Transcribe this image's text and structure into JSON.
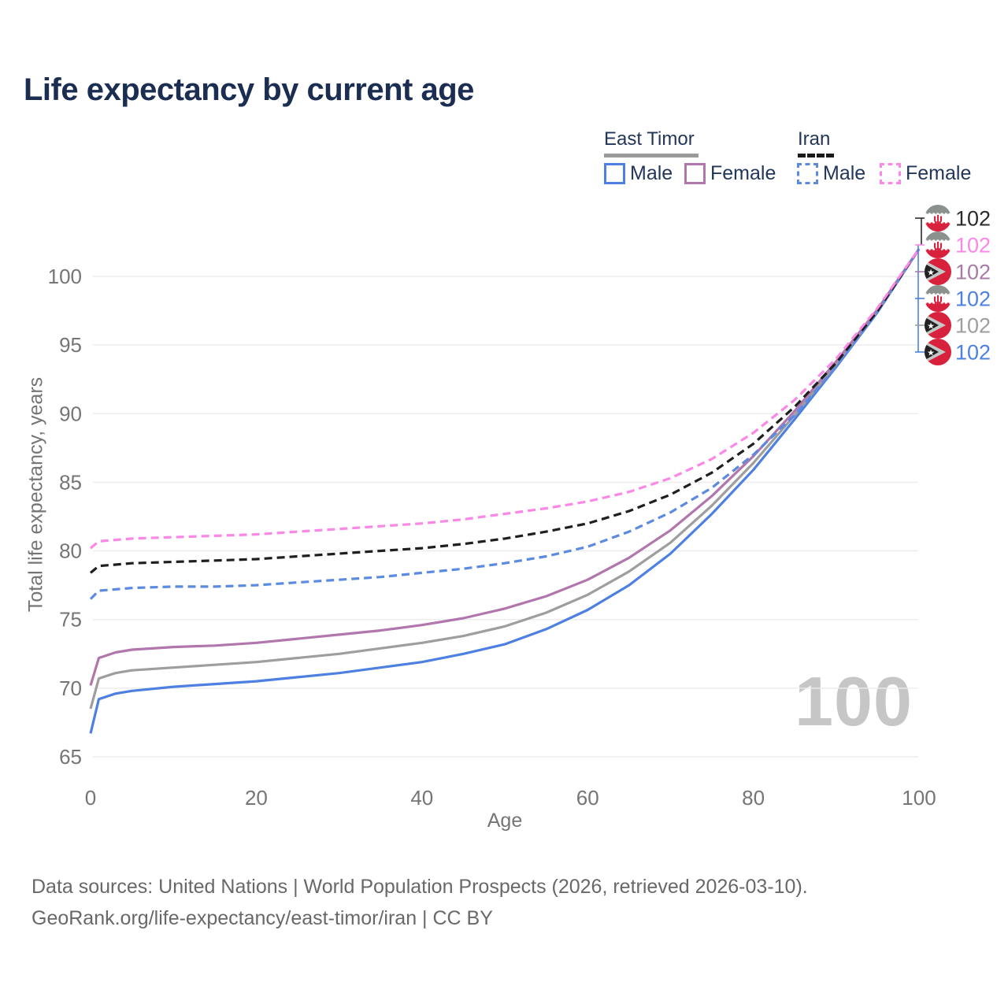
{
  "title": "Life expectancy by current age",
  "legend": {
    "groups": [
      {
        "name": "East Timor",
        "line_style": "solid",
        "underline_color": "#9a9a9a",
        "items": [
          {
            "label": "Male",
            "color": "#4d80e0"
          },
          {
            "label": "Female",
            "color": "#b177ad"
          }
        ]
      },
      {
        "name": "Iran",
        "line_style": "dashed",
        "underline_color": "#1a1a1a",
        "items": [
          {
            "label": "Male",
            "color": "#5b8ae0"
          },
          {
            "label": "Female",
            "color": "#fb87e7"
          }
        ]
      }
    ]
  },
  "chart_data": {
    "type": "line",
    "title": "Life expectancy by current age",
    "xlabel": "Age",
    "ylabel": "Total life expectancy, years",
    "xlim": [
      0,
      100
    ],
    "ylim": [
      65,
      102.5
    ],
    "x_ticks": [
      0,
      20,
      40,
      60,
      80,
      100
    ],
    "y_ticks": [
      65,
      70,
      75,
      80,
      85,
      90,
      95,
      100
    ],
    "grid": "horizontal",
    "legend_position": "top-right",
    "x": [
      0,
      1,
      3,
      5,
      10,
      15,
      20,
      25,
      30,
      35,
      40,
      45,
      50,
      55,
      60,
      65,
      70,
      75,
      80,
      85,
      90,
      95,
      100
    ],
    "series": [
      {
        "name": "East Timor Male",
        "country": "East Timor",
        "sex": "Male",
        "color": "#4d80e0",
        "dash": "solid",
        "end_value": 102,
        "values": [
          66.7,
          69.2,
          69.6,
          69.8,
          70.1,
          70.3,
          70.5,
          70.8,
          71.1,
          71.5,
          71.9,
          72.5,
          73.2,
          74.3,
          75.7,
          77.5,
          79.8,
          82.7,
          85.9,
          89.6,
          93.4,
          97.4,
          102
        ]
      },
      {
        "name": "East Timor Both sexes",
        "country": "East Timor",
        "sex": "Both",
        "color": "#9e9e9e",
        "dash": "solid",
        "end_value": 102,
        "values": [
          68.5,
          70.7,
          71.1,
          71.3,
          71.5,
          71.7,
          71.9,
          72.2,
          72.5,
          72.9,
          73.3,
          73.8,
          74.5,
          75.5,
          76.8,
          78.5,
          80.6,
          83.3,
          86.4,
          89.9,
          93.6,
          97.5,
          102
        ]
      },
      {
        "name": "East Timor Female",
        "country": "East Timor",
        "sex": "Female",
        "color": "#b177ad",
        "dash": "solid",
        "end_value": 102,
        "values": [
          70.2,
          72.2,
          72.6,
          72.8,
          73.0,
          73.1,
          73.3,
          73.6,
          73.9,
          74.2,
          74.6,
          75.1,
          75.8,
          76.7,
          77.9,
          79.5,
          81.5,
          84.0,
          86.9,
          90.2,
          93.8,
          97.6,
          102
        ]
      },
      {
        "name": "Iran Male",
        "country": "Iran",
        "sex": "Male",
        "color": "#5b8ae0",
        "dash": "dashed",
        "end_value": 102,
        "values": [
          76.5,
          77.1,
          77.2,
          77.3,
          77.4,
          77.4,
          77.5,
          77.7,
          77.9,
          78.1,
          78.4,
          78.7,
          79.1,
          79.6,
          80.3,
          81.4,
          82.8,
          84.6,
          87.0,
          89.9,
          93.4,
          97.4,
          102
        ]
      },
      {
        "name": "Iran Both sexes",
        "country": "Iran",
        "sex": "Both",
        "color": "#1f1f1f",
        "dash": "dashed",
        "end_value": 102,
        "values": [
          78.4,
          78.9,
          79.0,
          79.1,
          79.2,
          79.3,
          79.4,
          79.6,
          79.8,
          80.0,
          80.2,
          80.5,
          80.9,
          81.4,
          82.0,
          82.9,
          84.1,
          85.7,
          87.8,
          90.5,
          93.7,
          97.5,
          102
        ]
      },
      {
        "name": "Iran Female",
        "country": "Iran",
        "sex": "Female",
        "color": "#fb87e7",
        "dash": "dashed",
        "end_value": 102,
        "values": [
          80.2,
          80.7,
          80.8,
          80.9,
          81.0,
          81.1,
          81.2,
          81.4,
          81.6,
          81.8,
          82.0,
          82.3,
          82.7,
          83.1,
          83.6,
          84.3,
          85.3,
          86.7,
          88.6,
          91.0,
          94.0,
          97.7,
          102
        ]
      }
    ],
    "end_labels": [
      {
        "value": "102",
        "color": "#2b2b2b",
        "flag": "iran",
        "series": "Iran Both sexes"
      },
      {
        "value": "102",
        "color": "#fb87e7",
        "flag": "iran",
        "series": "Iran Female"
      },
      {
        "value": "102",
        "color": "#a87ba6",
        "flag": "east-timor",
        "series": "East Timor Female"
      },
      {
        "value": "102",
        "color": "#4d80e0",
        "flag": "iran",
        "series": "Iran Male"
      },
      {
        "value": "102",
        "color": "#9e9e9e",
        "flag": "east-timor",
        "series": "East Timor Both sexes"
      },
      {
        "value": "102",
        "color": "#4d80e0",
        "flag": "east-timor",
        "series": "East Timor Male"
      }
    ]
  },
  "watermark_age": "100",
  "axes": {
    "x_label": "Age",
    "y_label": "Total life expectancy, years"
  },
  "footer": {
    "line1": "Data sources: United Nations | World Population Prospects (2026, retrieved 2026-03-10).",
    "line2": "GeoRank.org/life-expectancy/east-timor/iran | CC BY"
  },
  "colors": {
    "title_text": "#1b2e52",
    "legend_text": "#22365a",
    "axis_text": "#757575",
    "gridline": "#ececec",
    "watermark": "#c6c6c6",
    "footer_text": "#686868",
    "flag_red": "#d8213d",
    "flag_gray_band": "#8b918d",
    "flag_triangle_gray": "#c3c8c6",
    "flag_black": "#222222"
  }
}
